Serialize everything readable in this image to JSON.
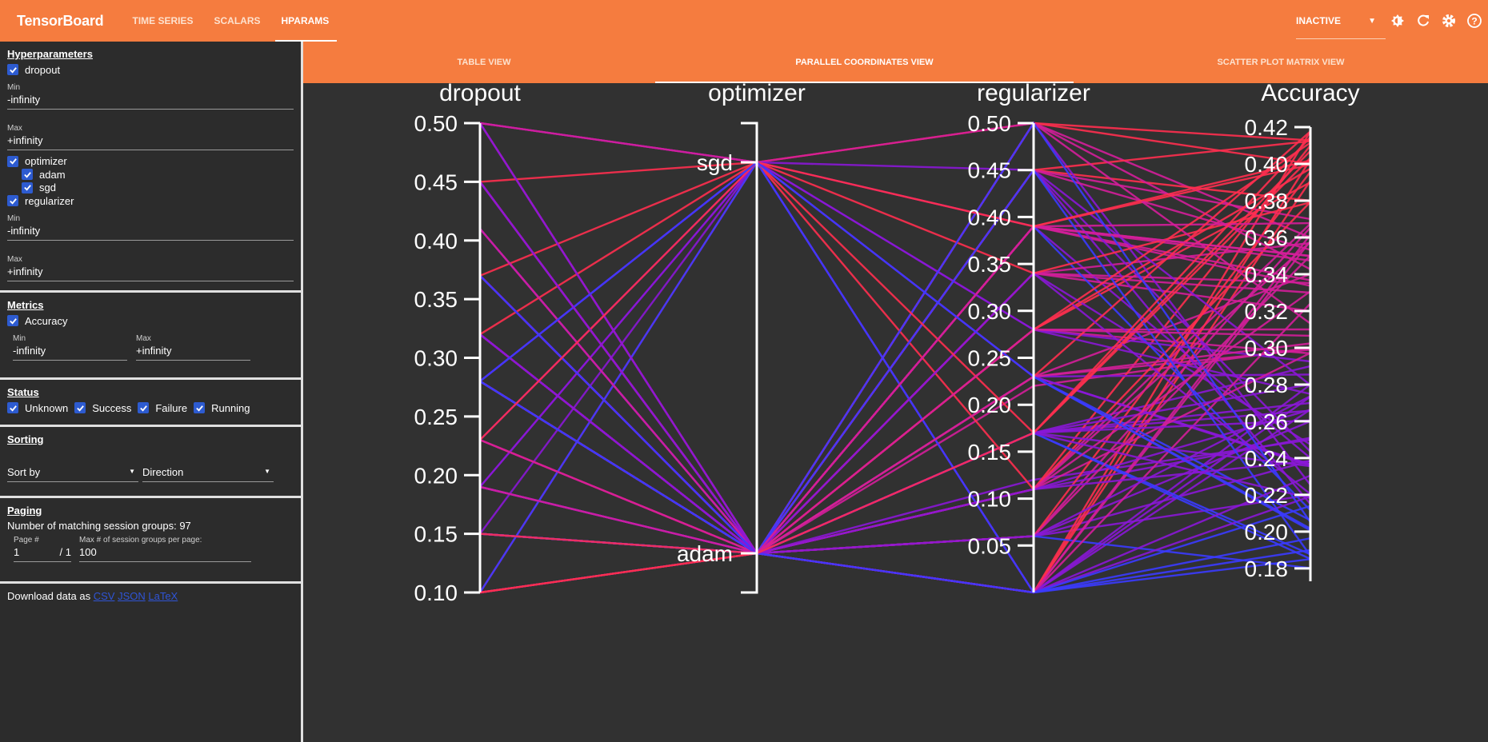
{
  "app": {
    "title": "TensorBoard"
  },
  "nav": {
    "tabs": [
      "TIME SERIES",
      "SCALARS",
      "HPARAMS"
    ],
    "active": "HPARAMS"
  },
  "topbar": {
    "status_value": "INACTIVE",
    "icons": [
      "brightness-icon",
      "refresh-icon",
      "settings-icon",
      "help-icon"
    ]
  },
  "colors": {
    "accent": "#f57c3f",
    "checkbox": "#2d5bd0",
    "panel": "#2c2c2c",
    "plot_bg": "#313131"
  },
  "sidebar": {
    "hyperparameters": {
      "title": "Hyperparameters",
      "dropout": {
        "label": "dropout",
        "min_label": "Min",
        "min_value": "-infinity",
        "max_label": "Max",
        "max_value": "+infinity"
      },
      "optimizer": {
        "label": "optimizer",
        "values": [
          "adam",
          "sgd"
        ]
      },
      "regularizer": {
        "label": "regularizer",
        "min_label": "Min",
        "min_value": "-infinity",
        "max_label": "Max",
        "max_value": "+infinity"
      }
    },
    "metrics": {
      "title": "Metrics",
      "accuracy": {
        "label": "Accuracy",
        "min_label": "Min",
        "min_value": "-infinity",
        "max_label": "Max",
        "max_value": "+infinity"
      }
    },
    "status": {
      "title": "Status",
      "options": [
        "Unknown",
        "Success",
        "Failure",
        "Running"
      ]
    },
    "sorting": {
      "title": "Sorting",
      "sort_by": "Sort by",
      "direction": "Direction"
    },
    "paging": {
      "title": "Paging",
      "matching_text": "Number of matching session groups: 97",
      "page_label": "Page #",
      "page_value": "1",
      "page_total": "/ 1",
      "per_page_label": "Max # of session groups per page:",
      "per_page_value": "100"
    },
    "download": {
      "text": "Download data as",
      "links": [
        "CSV",
        "JSON",
        "LaTeX"
      ]
    }
  },
  "views": {
    "tabs": [
      "TABLE VIEW",
      "PARALLEL COORDINATES VIEW",
      "SCATTER PLOT MATRIX VIEW"
    ],
    "active": "PARALLEL COORDINATES VIEW"
  },
  "chart_data": {
    "type": "parallel_coordinates",
    "axes": [
      {
        "name": "dropout",
        "kind": "numeric",
        "ticks": [
          "0.50",
          "0.45",
          "0.40",
          "0.35",
          "0.30",
          "0.25",
          "0.20",
          "0.15",
          "0.10"
        ],
        "range": [
          0.1,
          0.5
        ]
      },
      {
        "name": "optimizer",
        "kind": "categorical",
        "categories": [
          "sgd",
          "adam"
        ]
      },
      {
        "name": "regularizer",
        "kind": "numeric",
        "ticks": [
          "0.50",
          "0.45",
          "0.40",
          "0.35",
          "0.30",
          "0.25",
          "0.20",
          "0.15",
          "0.10",
          "0.05"
        ],
        "range": [
          0.0,
          0.5
        ]
      },
      {
        "name": "Accuracy",
        "kind": "numeric",
        "ticks": [
          "0.42",
          "0.40",
          "0.38",
          "0.36",
          "0.34",
          "0.32",
          "0.30",
          "0.28",
          "0.26",
          "0.24",
          "0.22",
          "0.20",
          "0.18"
        ],
        "range": [
          0.173,
          0.42
        ]
      }
    ],
    "session_groups_shown": 97,
    "color_scale": [
      "#3b3bff",
      "#8a17d6",
      "#d41e9a",
      "#ff2f4f"
    ],
    "sample_runs": [
      [
        0.5,
        "sgd",
        0.5,
        0.4
      ],
      [
        0.1,
        "sgd",
        0.5,
        0.36
      ],
      [
        0.5,
        "sgd",
        0.0,
        0.28
      ],
      [
        0.45,
        "adam",
        0.45,
        0.38
      ],
      [
        0.41,
        "adam",
        0.39,
        0.35
      ],
      [
        0.37,
        "adam",
        0.34,
        0.33
      ],
      [
        0.32,
        "adam",
        0.28,
        0.31
      ],
      [
        0.28,
        "adam",
        0.22,
        0.3
      ],
      [
        0.23,
        "adam",
        0.17,
        0.27
      ],
      [
        0.19,
        "adam",
        0.12,
        0.25
      ],
      [
        0.15,
        "adam",
        0.06,
        0.22
      ],
      [
        0.1,
        "adam",
        0.0,
        0.19
      ],
      [
        0.45,
        "adam",
        0.11,
        0.41
      ],
      [
        0.41,
        "adam",
        0.23,
        0.34
      ],
      [
        0.37,
        "adam",
        0.17,
        0.29
      ],
      [
        0.32,
        "adam",
        0.39,
        0.24
      ],
      [
        0.28,
        "adam",
        0.45,
        0.37
      ],
      [
        0.23,
        "adam",
        0.06,
        0.26
      ],
      [
        0.19,
        "adam",
        0.34,
        0.32
      ],
      [
        0.15,
        "adam",
        0.28,
        0.39
      ]
    ]
  }
}
